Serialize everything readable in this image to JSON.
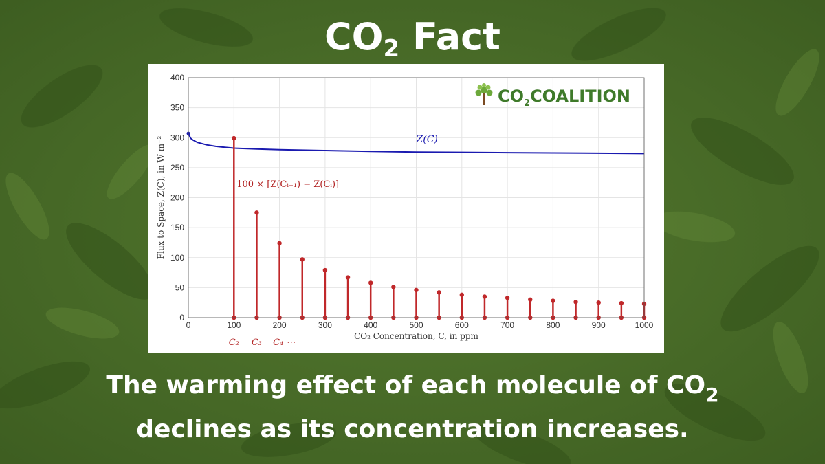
{
  "header": {
    "title_prefix": "CO",
    "title_sub": "2",
    "title_suffix": " Fact"
  },
  "logo": {
    "text_main": "CO",
    "text_sub": "2",
    "text_rest": "COALITION",
    "color": "#3f7a2a"
  },
  "caption": {
    "line1_prefix": "The warming effect of each molecule of CO",
    "line1_sub": "2",
    "line2": "declines as its concentration increases."
  },
  "colors": {
    "background": "#4b6f2a",
    "curve": "#1a1ab0",
    "stems": "#c0282a",
    "text": "#ffffff"
  },
  "chart_data": {
    "type": "line",
    "xlabel": "CO₂ Concentration, C, in ppm",
    "ylabel": "Flux to Space, Z(C), in W m⁻²",
    "xlim": [
      0,
      1000
    ],
    "ylim": [
      0,
      400
    ],
    "xticks": [
      0,
      100,
      200,
      300,
      400,
      500,
      600,
      700,
      800,
      900,
      1000
    ],
    "yticks": [
      0,
      50,
      100,
      150,
      200,
      250,
      300,
      350,
      400
    ],
    "grid": true,
    "series": [
      {
        "name": "Z(C)",
        "kind": "line",
        "color": "#1a1ab0",
        "x": [
          0,
          5,
          10,
          20,
          40,
          60,
          80,
          100,
          150,
          200,
          300,
          400,
          500,
          600,
          700,
          800,
          900,
          1000
        ],
        "y": [
          307,
          299,
          296,
          292,
          288,
          285.5,
          284,
          282.5,
          281,
          280,
          278.5,
          277,
          276,
          275.5,
          275,
          274.5,
          274,
          273.5
        ]
      },
      {
        "name": "100 × [Z(Cᵢ₋₁) − Z(Cᵢ)]",
        "kind": "stem",
        "color": "#c0282a",
        "x": [
          100,
          150,
          200,
          250,
          300,
          350,
          400,
          450,
          500,
          550,
          600,
          650,
          700,
          750,
          800,
          850,
          900,
          950,
          1000
        ],
        "y": [
          299,
          175,
          124,
          97,
          79,
          67,
          58,
          51,
          46,
          42,
          38,
          35,
          33,
          30,
          28,
          26,
          25,
          24,
          23
        ]
      }
    ],
    "annotations": {
      "curve_label": "Z(C)",
      "stem_label": "100 × [Z(Cᵢ₋₁) − Z(Cᵢ)]",
      "c_labels": [
        "C₂",
        "C₃",
        "C₄ ⋯"
      ]
    }
  }
}
